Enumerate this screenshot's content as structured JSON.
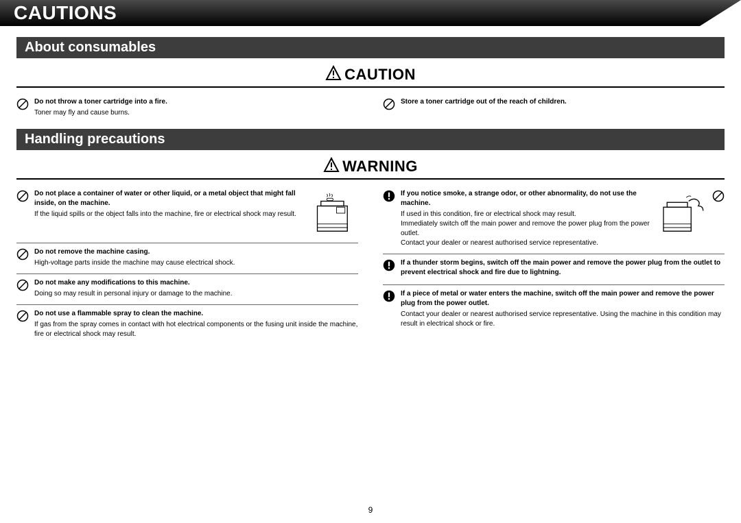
{
  "page_title": "CAUTIONS",
  "page_number": "9",
  "sections": {
    "consumables": {
      "heading": "About consumables",
      "alert": "CAUTION",
      "left": {
        "bold": "Do not throw a toner cartridge into a fire.",
        "body": "Toner may fly and cause burns."
      },
      "right": {
        "bold": "Store a toner cartridge out of the reach of children."
      }
    },
    "handling": {
      "heading": "Handling precautions",
      "alert": "WARNING",
      "left": [
        {
          "bold": "Do not place a container of water or other liquid, or a metal object that might fall inside, on the machine.",
          "body": "If the liquid spills or the object falls into the machine, fire or electrical shock may result.",
          "has_illustration": true
        },
        {
          "bold": "Do not remove the machine casing.",
          "body": "High-voltage parts inside the machine may cause electrical shock."
        },
        {
          "bold": "Do not make any modifications to this machine.",
          "body": "Doing so may result in personal injury or damage to the machine."
        },
        {
          "bold": "Do not use a flammable spray to clean the machine.",
          "body": "If gas from the spray comes in contact with hot electrical components or the fusing unit inside the machine, fire or electrical shock may result."
        }
      ],
      "right": [
        {
          "bold": "If you notice smoke, a strange odor, or other abnormality, do not use the machine.",
          "body": "If used in this condition, fire or electrical shock may result.\nImmediately switch off the main power and remove the power plug from the power outlet.\nContact your dealer or nearest authorised service representative.",
          "has_illustration": true,
          "trail_prohibit": true
        },
        {
          "bold": "If a thunder storm begins, switch off the main power and remove the power plug from the outlet to prevent electrical shock and fire due to lightning."
        },
        {
          "bold": "If a piece of metal or water enters the machine, switch off the main power and remove the power plug from the power outlet.",
          "body": "Contact your dealer or nearest authorised service representative. Using the machine in this condition may result in electrical shock or fire."
        }
      ]
    }
  }
}
